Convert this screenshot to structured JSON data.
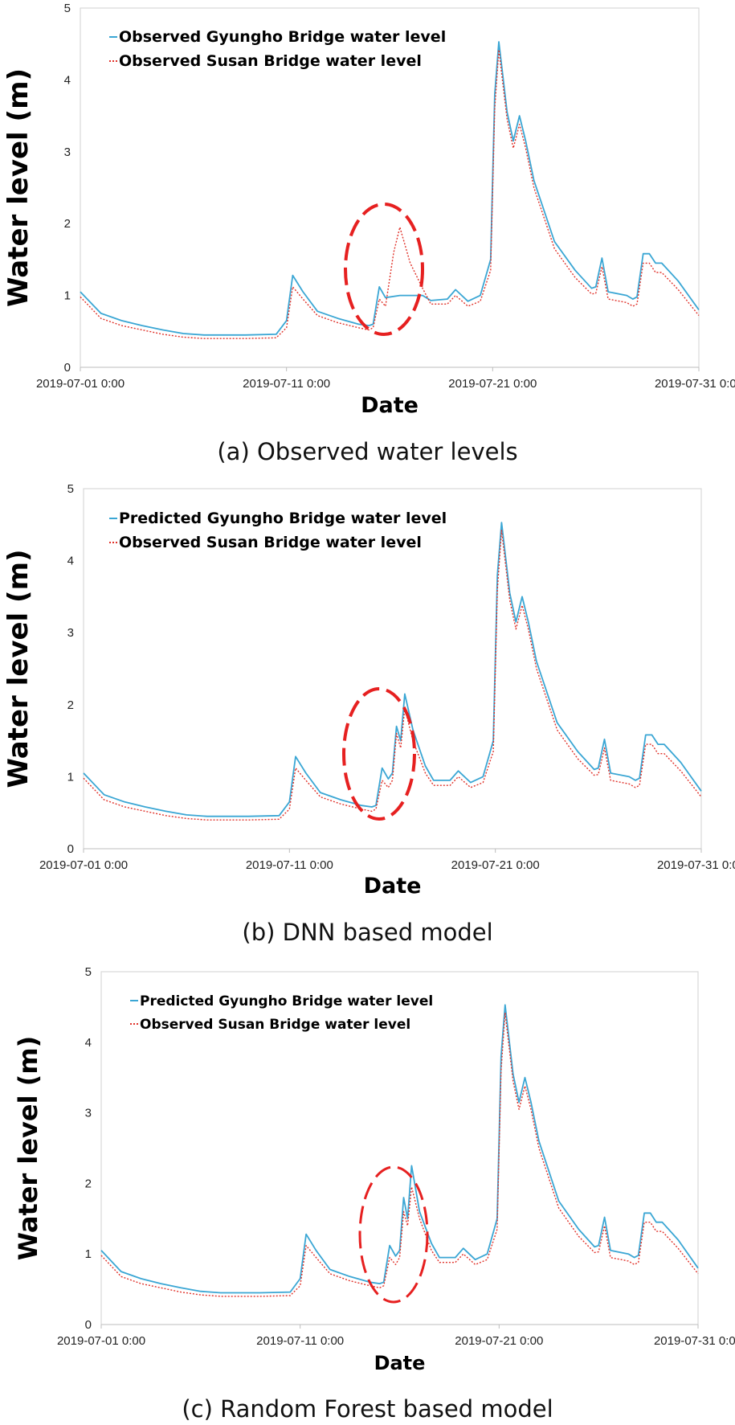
{
  "chart_data": [
    {
      "type": "line",
      "caption": "(a) Observed water levels",
      "xlabel": "Date",
      "ylabel": "Water level (m)",
      "ylim": [
        0,
        5
      ],
      "yticks": [
        "0",
        "1",
        "2",
        "3",
        "4",
        "5"
      ],
      "xlim": [
        0,
        30
      ],
      "xticks": [
        {
          "value": 0,
          "label": "2019-07-01 0:00"
        },
        {
          "value": 10,
          "label": "2019-07-11 0:00"
        },
        {
          "value": 20,
          "label": "2019-07-21 0:00"
        },
        {
          "value": 30,
          "label": "2019-07-31 0:00"
        }
      ],
      "grid": false,
      "legend_position": "top-left",
      "series": [
        {
          "name": "Observed Gyungho Bridge water level",
          "color": "#3aa6d4",
          "dash": "solid",
          "x": [
            0,
            1,
            2,
            3,
            4,
            5,
            6,
            7,
            8,
            9.5,
            10,
            10.3,
            10.8,
            11.5,
            12.5,
            13.5,
            14.0,
            14.2,
            14.5,
            14.8,
            15.5,
            16.2,
            16.3,
            16.6,
            17,
            17.8,
            18.2,
            18.8,
            19.4,
            19.9,
            20.1,
            20.3,
            20.7,
            21.0,
            21.3,
            21.6,
            22.0,
            23.0,
            24.0,
            24.8,
            25.0,
            25.3,
            25.6,
            26.5,
            26.8,
            27.0,
            27.3,
            27.6,
            27.9,
            28.2,
            29.0,
            30.0
          ],
          "y": [
            1.05,
            0.75,
            0.65,
            0.58,
            0.52,
            0.47,
            0.45,
            0.45,
            0.45,
            0.46,
            0.65,
            1.28,
            1.05,
            0.78,
            0.68,
            0.6,
            0.58,
            0.6,
            1.12,
            0.97,
            1.0,
            1.0,
            1.0,
            1.0,
            0.93,
            0.95,
            1.08,
            0.92,
            1.0,
            1.5,
            3.8,
            4.53,
            3.55,
            3.15,
            3.5,
            3.15,
            2.6,
            1.75,
            1.35,
            1.1,
            1.12,
            1.52,
            1.05,
            1.0,
            0.95,
            0.98,
            1.58,
            1.58,
            1.45,
            1.45,
            1.2,
            0.8
          ]
        },
        {
          "name": "Observed Susan Bridge water level",
          "color": "#e0322a",
          "dash": "dot",
          "x": [
            0,
            1,
            2,
            3,
            4,
            5,
            6,
            7,
            8,
            9.5,
            10,
            10.3,
            10.8,
            11.5,
            12.5,
            13.5,
            14.0,
            14.2,
            14.5,
            14.8,
            15.2,
            15.5,
            16.0,
            16.6,
            17,
            17.8,
            18.2,
            18.8,
            19.4,
            19.9,
            20.1,
            20.3,
            20.7,
            21.0,
            21.3,
            21.6,
            22.0,
            23.0,
            24.0,
            24.8,
            25.0,
            25.3,
            25.6,
            26.5,
            26.8,
            27.0,
            27.3,
            27.6,
            27.9,
            28.2,
            29.0,
            30.0
          ],
          "y": [
            0.98,
            0.68,
            0.58,
            0.52,
            0.46,
            0.42,
            0.4,
            0.4,
            0.4,
            0.41,
            0.55,
            1.12,
            0.95,
            0.72,
            0.62,
            0.55,
            0.52,
            0.55,
            0.95,
            0.85,
            1.6,
            1.95,
            1.45,
            1.1,
            0.88,
            0.88,
            1.0,
            0.85,
            0.92,
            1.35,
            3.6,
            4.42,
            3.45,
            3.05,
            3.38,
            3.05,
            2.5,
            1.65,
            1.25,
            1.02,
            1.03,
            1.4,
            0.95,
            0.9,
            0.85,
            0.88,
            1.45,
            1.45,
            1.32,
            1.32,
            1.08,
            0.72
          ]
        }
      ]
    },
    {
      "type": "line",
      "caption": "(b) DNN based model",
      "xlabel": "Date",
      "ylabel": "Water level (m)",
      "ylim": [
        0,
        5
      ],
      "yticks": [
        "0",
        "1",
        "2",
        "3",
        "4",
        "5"
      ],
      "xlim": [
        0,
        30
      ],
      "xticks": [
        {
          "value": 0,
          "label": "2019-07-01 0:00"
        },
        {
          "value": 10,
          "label": "2019-07-11 0:00"
        },
        {
          "value": 20,
          "label": "2019-07-21 0:00"
        },
        {
          "value": 30,
          "label": "2019-07-31 0:00"
        }
      ],
      "grid": false,
      "legend_position": "top-left",
      "series": [
        {
          "name": "Predicted Gyungho Bridge water level",
          "color": "#3aa6d4",
          "dash": "solid",
          "x": [
            0,
            1,
            2,
            3,
            4,
            5,
            6,
            7,
            8,
            9.5,
            10,
            10.3,
            10.8,
            11.5,
            12.5,
            13.5,
            14.0,
            14.2,
            14.5,
            14.8,
            15.0,
            15.2,
            15.4,
            15.6,
            16.0,
            16.6,
            17,
            17.8,
            18.2,
            18.8,
            19.4,
            19.9,
            20.1,
            20.3,
            20.7,
            21.0,
            21.3,
            21.6,
            22.0,
            23.0,
            24.0,
            24.8,
            25.0,
            25.3,
            25.6,
            26.5,
            26.8,
            27.0,
            27.3,
            27.6,
            27.9,
            28.2,
            29.0,
            30.0
          ],
          "y": [
            1.05,
            0.75,
            0.65,
            0.58,
            0.52,
            0.47,
            0.45,
            0.45,
            0.45,
            0.46,
            0.65,
            1.28,
            1.05,
            0.78,
            0.68,
            0.6,
            0.58,
            0.6,
            1.12,
            0.97,
            1.05,
            1.7,
            1.5,
            2.15,
            1.65,
            1.15,
            0.95,
            0.95,
            1.08,
            0.92,
            1.0,
            1.5,
            3.8,
            4.53,
            3.55,
            3.15,
            3.5,
            3.15,
            2.6,
            1.75,
            1.35,
            1.1,
            1.12,
            1.52,
            1.05,
            1.0,
            0.95,
            0.98,
            1.58,
            1.58,
            1.45,
            1.45,
            1.2,
            0.8
          ]
        },
        {
          "name": "Observed Susan Bridge water level",
          "color": "#e0322a",
          "dash": "dot",
          "x": [
            0,
            1,
            2,
            3,
            4,
            5,
            6,
            7,
            8,
            9.5,
            10,
            10.3,
            10.8,
            11.5,
            12.5,
            13.5,
            14.0,
            14.2,
            14.5,
            14.8,
            15.0,
            15.2,
            15.4,
            15.6,
            16.0,
            16.6,
            17,
            17.8,
            18.2,
            18.8,
            19.4,
            19.9,
            20.1,
            20.3,
            20.7,
            21.0,
            21.3,
            21.6,
            22.0,
            23.0,
            24.0,
            24.8,
            25.0,
            25.3,
            25.6,
            26.5,
            26.8,
            27.0,
            27.3,
            27.6,
            27.9,
            28.2,
            29.0,
            30.0
          ],
          "y": [
            0.98,
            0.68,
            0.58,
            0.52,
            0.46,
            0.42,
            0.4,
            0.4,
            0.4,
            0.41,
            0.55,
            1.12,
            0.95,
            0.72,
            0.62,
            0.55,
            0.52,
            0.55,
            0.95,
            0.85,
            0.95,
            1.6,
            1.4,
            1.95,
            1.5,
            1.05,
            0.88,
            0.88,
            1.0,
            0.85,
            0.92,
            1.35,
            3.6,
            4.42,
            3.45,
            3.05,
            3.38,
            3.05,
            2.5,
            1.65,
            1.25,
            1.02,
            1.03,
            1.4,
            0.95,
            0.9,
            0.85,
            0.88,
            1.45,
            1.45,
            1.32,
            1.32,
            1.08,
            0.72
          ]
        }
      ]
    },
    {
      "type": "line",
      "caption": "(c) Random Forest based model",
      "xlabel": "Date",
      "ylabel": "Water level (m)",
      "ylim": [
        0,
        5
      ],
      "yticks": [
        "0",
        "1",
        "2",
        "3",
        "4",
        "5"
      ],
      "xlim": [
        0,
        30
      ],
      "xticks": [
        {
          "value": 0,
          "label": "2019-07-01 0:00"
        },
        {
          "value": 10,
          "label": "2019-07-11 0:00"
        },
        {
          "value": 20,
          "label": "2019-07-21 0:00"
        },
        {
          "value": 30,
          "label": "2019-07-31 0:00"
        }
      ],
      "grid": false,
      "legend_position": "top-left",
      "series": [
        {
          "name": "Predicted Gyungho Bridge water level",
          "color": "#3aa6d4",
          "dash": "solid",
          "x": [
            0,
            1,
            2,
            3,
            4,
            5,
            6,
            7,
            8,
            9.5,
            10,
            10.3,
            10.8,
            11.5,
            12.5,
            13.5,
            14.0,
            14.2,
            14.5,
            14.8,
            15.0,
            15.2,
            15.4,
            15.6,
            16.0,
            16.6,
            17,
            17.8,
            18.2,
            18.8,
            19.4,
            19.9,
            20.1,
            20.3,
            20.7,
            21.0,
            21.3,
            21.6,
            22.0,
            23.0,
            24.0,
            24.8,
            25.0,
            25.3,
            25.6,
            26.5,
            26.8,
            27.0,
            27.3,
            27.6,
            27.9,
            28.2,
            29.0,
            30.0
          ],
          "y": [
            1.05,
            0.75,
            0.65,
            0.58,
            0.52,
            0.47,
            0.45,
            0.45,
            0.45,
            0.46,
            0.65,
            1.28,
            1.05,
            0.78,
            0.68,
            0.6,
            0.58,
            0.6,
            1.12,
            0.97,
            1.05,
            1.8,
            1.5,
            2.25,
            1.6,
            1.15,
            0.95,
            0.95,
            1.08,
            0.92,
            1.0,
            1.5,
            3.8,
            4.53,
            3.55,
            3.15,
            3.5,
            3.15,
            2.6,
            1.75,
            1.35,
            1.1,
            1.12,
            1.52,
            1.05,
            1.0,
            0.95,
            0.98,
            1.58,
            1.58,
            1.45,
            1.45,
            1.2,
            0.8
          ]
        },
        {
          "name": "Observed Susan Bridge water level",
          "color": "#e0322a",
          "dash": "dot",
          "x": [
            0,
            1,
            2,
            3,
            4,
            5,
            6,
            7,
            8,
            9.5,
            10,
            10.3,
            10.8,
            11.5,
            12.5,
            13.5,
            14.0,
            14.2,
            14.5,
            14.8,
            15.0,
            15.2,
            15.4,
            15.6,
            16.0,
            16.6,
            17,
            17.8,
            18.2,
            18.8,
            19.4,
            19.9,
            20.1,
            20.3,
            20.7,
            21.0,
            21.3,
            21.6,
            22.0,
            23.0,
            24.0,
            24.8,
            25.0,
            25.3,
            25.6,
            26.5,
            26.8,
            27.0,
            27.3,
            27.6,
            27.9,
            28.2,
            29.0,
            30.0
          ],
          "y": [
            0.98,
            0.68,
            0.58,
            0.52,
            0.46,
            0.42,
            0.4,
            0.4,
            0.4,
            0.41,
            0.55,
            1.12,
            0.95,
            0.72,
            0.62,
            0.55,
            0.52,
            0.55,
            0.95,
            0.85,
            0.95,
            1.6,
            1.4,
            1.95,
            1.5,
            1.05,
            0.88,
            0.88,
            1.0,
            0.85,
            0.92,
            1.35,
            3.6,
            4.42,
            3.45,
            3.05,
            3.38,
            3.05,
            2.5,
            1.65,
            1.25,
            1.02,
            1.03,
            1.4,
            0.95,
            0.9,
            0.85,
            0.88,
            1.45,
            1.45,
            1.32,
            1.32,
            1.08,
            0.72
          ]
        }
      ]
    }
  ]
}
